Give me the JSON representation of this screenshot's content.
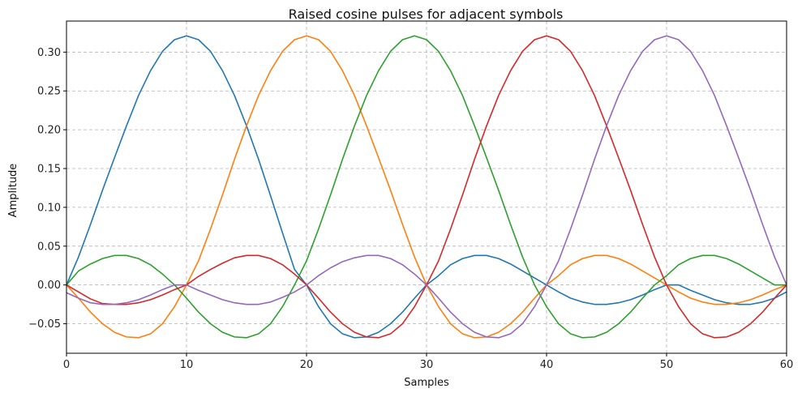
{
  "chart_data": {
    "type": "line",
    "title": "Raised cosine pulses for adjacent symbols",
    "xlabel": "Samples",
    "ylabel": "Amplitude",
    "xlim": [
      0,
      60
    ],
    "ylim": [
      -0.088,
      0.34
    ],
    "xticks": [
      0,
      10,
      20,
      30,
      40,
      50,
      60
    ],
    "xtick_labels": [
      "0",
      "10",
      "20",
      "30",
      "40",
      "50",
      "60"
    ],
    "yticks": [
      -0.05,
      0.0,
      0.05,
      0.1,
      0.15,
      0.2,
      0.25,
      0.3
    ],
    "ytick_labels": [
      "−0.05",
      "0.00",
      "0.05",
      "0.10",
      "0.15",
      "0.20",
      "0.25",
      "0.30"
    ],
    "grid": true,
    "legend": false,
    "series": [
      {
        "color": "#1f77b4",
        "x": [
          0,
          1,
          2,
          3,
          4,
          5,
          6,
          7,
          8,
          9,
          10,
          11,
          12,
          13,
          14,
          15,
          16,
          17,
          18,
          19,
          20,
          21,
          22,
          23,
          24,
          25,
          26,
          27,
          28,
          29,
          30,
          31,
          32,
          33,
          34,
          35,
          36,
          37,
          38,
          39,
          40,
          41,
          42,
          43,
          44,
          45,
          46,
          47,
          48,
          49,
          50,
          51,
          52,
          53,
          54,
          55,
          56,
          57,
          58,
          59,
          60
        ],
        "y": [
          0,
          0.036,
          0.078,
          0.122,
          0.164,
          0.205,
          0.244,
          0.276,
          0.301,
          0.316,
          0.321,
          0.316,
          0.301,
          0.276,
          0.244,
          0.205,
          0.162,
          0.115,
          0.067,
          0.02,
          0,
          -0.028,
          -0.05,
          -0.063,
          -0.068,
          -0.067,
          -0.061,
          -0.05,
          -0.035,
          -0.017,
          0,
          0.012,
          0.026,
          0.034,
          0.038,
          0.038,
          0.034,
          0.027,
          0.018,
          0.009,
          0,
          -0.009,
          -0.017,
          -0.022,
          -0.025,
          -0.025,
          -0.023,
          -0.019,
          -0.013,
          -0.006,
          0,
          0,
          -0.007,
          -0.013,
          -0.019,
          -0.023,
          -0.025,
          -0.025,
          -0.022,
          -0.017,
          -0.009
        ]
      },
      {
        "color": "#ff7f0e",
        "x": [
          0,
          1,
          2,
          3,
          4,
          5,
          6,
          7,
          8,
          9,
          10,
          11,
          12,
          13,
          14,
          15,
          16,
          17,
          18,
          19,
          20,
          21,
          22,
          23,
          24,
          25,
          26,
          27,
          28,
          29,
          30,
          31,
          32,
          33,
          34,
          35,
          36,
          37,
          38,
          39,
          40,
          41,
          42,
          43,
          44,
          45,
          46,
          47,
          48,
          49,
          50,
          51,
          52,
          53,
          54,
          55,
          56,
          57,
          58,
          59,
          60
        ],
        "y": [
          0,
          -0.017,
          -0.035,
          -0.05,
          -0.061,
          -0.067,
          -0.068,
          -0.063,
          -0.05,
          -0.028,
          0,
          0.031,
          0.072,
          0.116,
          0.162,
          0.205,
          0.244,
          0.276,
          0.301,
          0.316,
          0.321,
          0.316,
          0.301,
          0.276,
          0.244,
          0.205,
          0.164,
          0.122,
          0.078,
          0.036,
          0,
          -0.028,
          -0.05,
          -0.063,
          -0.068,
          -0.067,
          -0.061,
          -0.05,
          -0.035,
          -0.017,
          0,
          0.012,
          0.026,
          0.034,
          0.038,
          0.038,
          0.034,
          0.027,
          0.018,
          0.009,
          0,
          -0.009,
          -0.017,
          -0.022,
          -0.025,
          -0.025,
          -0.023,
          -0.019,
          -0.013,
          -0.006,
          0
        ]
      },
      {
        "color": "#2ca02c",
        "x": [
          0,
          1,
          2,
          3,
          4,
          5,
          6,
          7,
          8,
          9,
          10,
          11,
          12,
          13,
          14,
          15,
          16,
          17,
          18,
          19,
          20,
          21,
          22,
          23,
          24,
          25,
          26,
          27,
          28,
          29,
          30,
          31,
          32,
          33,
          34,
          35,
          36,
          37,
          38,
          39,
          40,
          41,
          42,
          43,
          44,
          45,
          46,
          47,
          48,
          49,
          50,
          51,
          52,
          53,
          54,
          55,
          56,
          57,
          58,
          59,
          60
        ],
        "y": [
          0,
          0.018,
          0.027,
          0.034,
          0.038,
          0.038,
          0.034,
          0.026,
          0.014,
          0,
          -0.017,
          -0.035,
          -0.05,
          -0.061,
          -0.067,
          -0.068,
          -0.063,
          -0.05,
          -0.028,
          0,
          0.031,
          0.072,
          0.116,
          0.162,
          0.205,
          0.244,
          0.276,
          0.301,
          0.316,
          0.321,
          0.316,
          0.301,
          0.276,
          0.244,
          0.205,
          0.164,
          0.122,
          0.078,
          0.036,
          0,
          -0.028,
          -0.05,
          -0.063,
          -0.068,
          -0.067,
          -0.061,
          -0.05,
          -0.035,
          -0.017,
          0,
          0.012,
          0.026,
          0.034,
          0.038,
          0.038,
          0.034,
          0.027,
          0.018,
          0.009,
          0,
          0
        ]
      },
      {
        "color": "#d62728",
        "x": [
          0,
          1,
          2,
          3,
          4,
          5,
          6,
          7,
          8,
          9,
          10,
          11,
          12,
          13,
          14,
          15,
          16,
          17,
          18,
          19,
          20,
          21,
          22,
          23,
          24,
          25,
          26,
          27,
          28,
          29,
          30,
          31,
          32,
          33,
          34,
          35,
          36,
          37,
          38,
          39,
          40,
          41,
          42,
          43,
          44,
          45,
          46,
          47,
          48,
          49,
          50,
          51,
          52,
          53,
          54,
          55,
          56,
          57,
          58,
          59,
          60
        ],
        "y": [
          0,
          -0.009,
          -0.018,
          -0.024,
          -0.025,
          -0.025,
          -0.023,
          -0.019,
          -0.013,
          -0.006,
          0,
          0.011,
          0.02,
          0.028,
          0.035,
          0.038,
          0.038,
          0.034,
          0.026,
          0.014,
          0,
          -0.017,
          -0.035,
          -0.05,
          -0.061,
          -0.067,
          -0.068,
          -0.063,
          -0.05,
          -0.028,
          0,
          0.031,
          0.072,
          0.116,
          0.162,
          0.205,
          0.244,
          0.276,
          0.301,
          0.316,
          0.321,
          0.316,
          0.301,
          0.276,
          0.244,
          0.205,
          0.164,
          0.122,
          0.078,
          0.036,
          0,
          -0.028,
          -0.05,
          -0.063,
          -0.068,
          -0.067,
          -0.061,
          -0.05,
          -0.035,
          -0.017,
          0
        ]
      },
      {
        "color": "#9467bd",
        "x": [
          0,
          1,
          2,
          3,
          4,
          5,
          6,
          7,
          8,
          9,
          10,
          11,
          12,
          13,
          14,
          15,
          16,
          17,
          18,
          19,
          20,
          21,
          22,
          23,
          24,
          25,
          26,
          27,
          28,
          29,
          30,
          31,
          32,
          33,
          34,
          35,
          36,
          37,
          38,
          39,
          40,
          41,
          42,
          43,
          44,
          45,
          46,
          47,
          48,
          49,
          50,
          51,
          52,
          53,
          54,
          55,
          56,
          57,
          58,
          59,
          60
        ],
        "y": [
          -0.01,
          -0.017,
          -0.023,
          -0.025,
          -0.025,
          -0.023,
          -0.019,
          -0.013,
          -0.006,
          0,
          0,
          -0.007,
          -0.013,
          -0.019,
          -0.023,
          -0.025,
          -0.025,
          -0.022,
          -0.016,
          -0.009,
          0,
          0.012,
          0.022,
          0.03,
          0.035,
          0.038,
          0.038,
          0.034,
          0.026,
          0.014,
          0,
          -0.017,
          -0.035,
          -0.05,
          -0.061,
          -0.067,
          -0.068,
          -0.063,
          -0.05,
          -0.028,
          0,
          0.031,
          0.072,
          0.116,
          0.162,
          0.205,
          0.244,
          0.276,
          0.301,
          0.316,
          0.321,
          0.316,
          0.301,
          0.276,
          0.244,
          0.205,
          0.164,
          0.122,
          0.078,
          0.036,
          0
        ]
      }
    ]
  }
}
